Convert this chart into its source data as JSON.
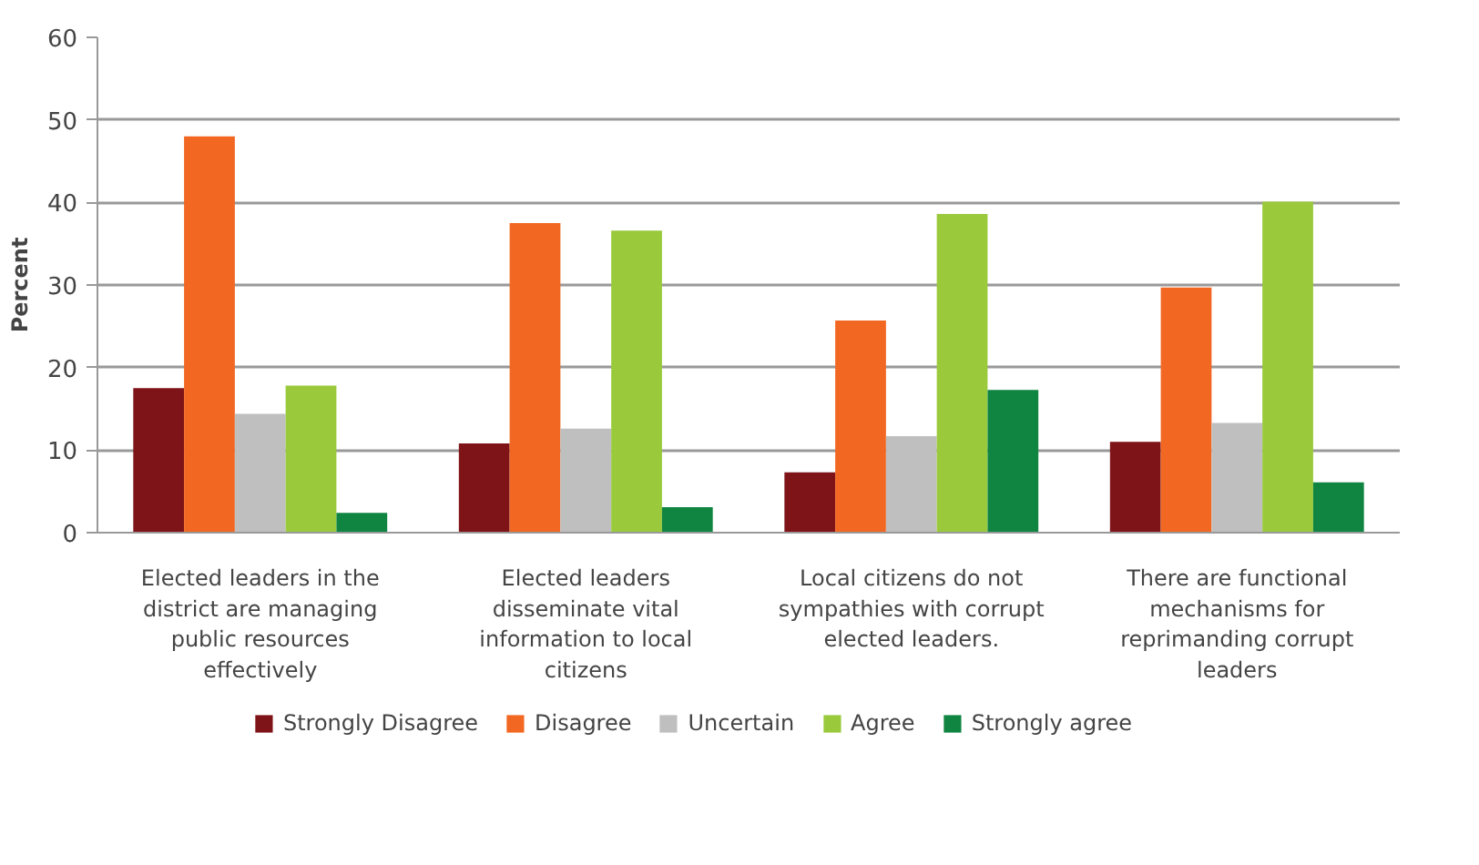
{
  "chart_data": {
    "type": "bar",
    "ylabel": "Percent",
    "categories": [
      "Elected leaders in the district are managing public resources effectively",
      "Elected leaders disseminate vital information to local citizens",
      "Local citizens do not sympathies with corrupt elected leaders.",
      "There are functional mechanisms for reprimanding corrupt leaders"
    ],
    "series": [
      {
        "name": "Strongly Disagree",
        "color": "#7f1418",
        "values": [
          17.5,
          10.8,
          7.3,
          11.0
        ]
      },
      {
        "name": "Disagree",
        "color": "#f26822",
        "values": [
          48,
          37.5,
          25.7,
          29.7
        ]
      },
      {
        "name": "Uncertain",
        "color": "#bfbfbf",
        "values": [
          14.4,
          12.6,
          11.7,
          13.3
        ]
      },
      {
        "name": "Agree",
        "color": "#9aca3c",
        "values": [
          17.8,
          36.6,
          38.6,
          40.1
        ]
      },
      {
        "name": "Strongly agree",
        "color": "#108542",
        "values": [
          2.4,
          3.1,
          17.3,
          6.1
        ]
      }
    ],
    "ylim": [
      0,
      60
    ],
    "yticks": [
      0,
      10,
      20,
      30,
      40,
      50,
      60
    ],
    "grid": "y",
    "legend": "bottom"
  }
}
